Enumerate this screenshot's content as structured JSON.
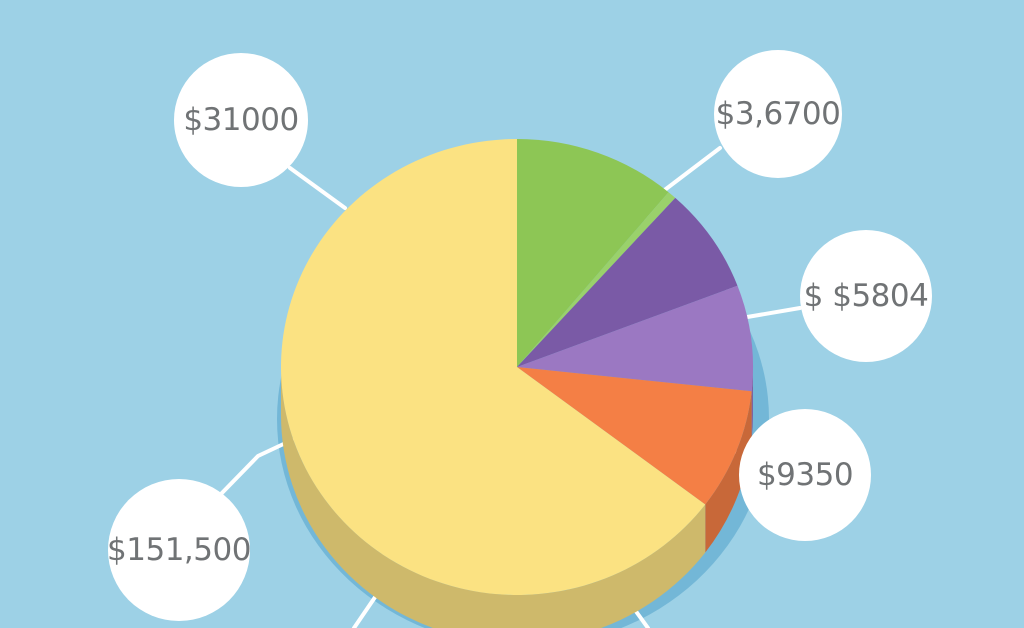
{
  "chart_data": {
    "type": "pie",
    "title": "",
    "legend": "none",
    "grid": false,
    "slices": [
      {
        "label": "$3,6700",
        "value": 11.1,
        "color": "#8dc655"
      },
      {
        "label": "",
        "value": 0.6,
        "color": "#9ad16b"
      },
      {
        "label": "",
        "value": 7.5,
        "color": "#7a5aa6"
      },
      {
        "label": "$ $5804",
        "value": 7.5,
        "color": "#9b78c2"
      },
      {
        "label": "$9350",
        "value": 8.6,
        "color": "#f47f45"
      },
      {
        "label": "$31000",
        "value": 64.7,
        "color": "#fbe282"
      }
    ],
    "callouts": [
      "$31000",
      "$3,6700",
      "$ $5804",
      "$9350",
      "$151,500"
    ],
    "background": "#9dd1e6"
  }
}
